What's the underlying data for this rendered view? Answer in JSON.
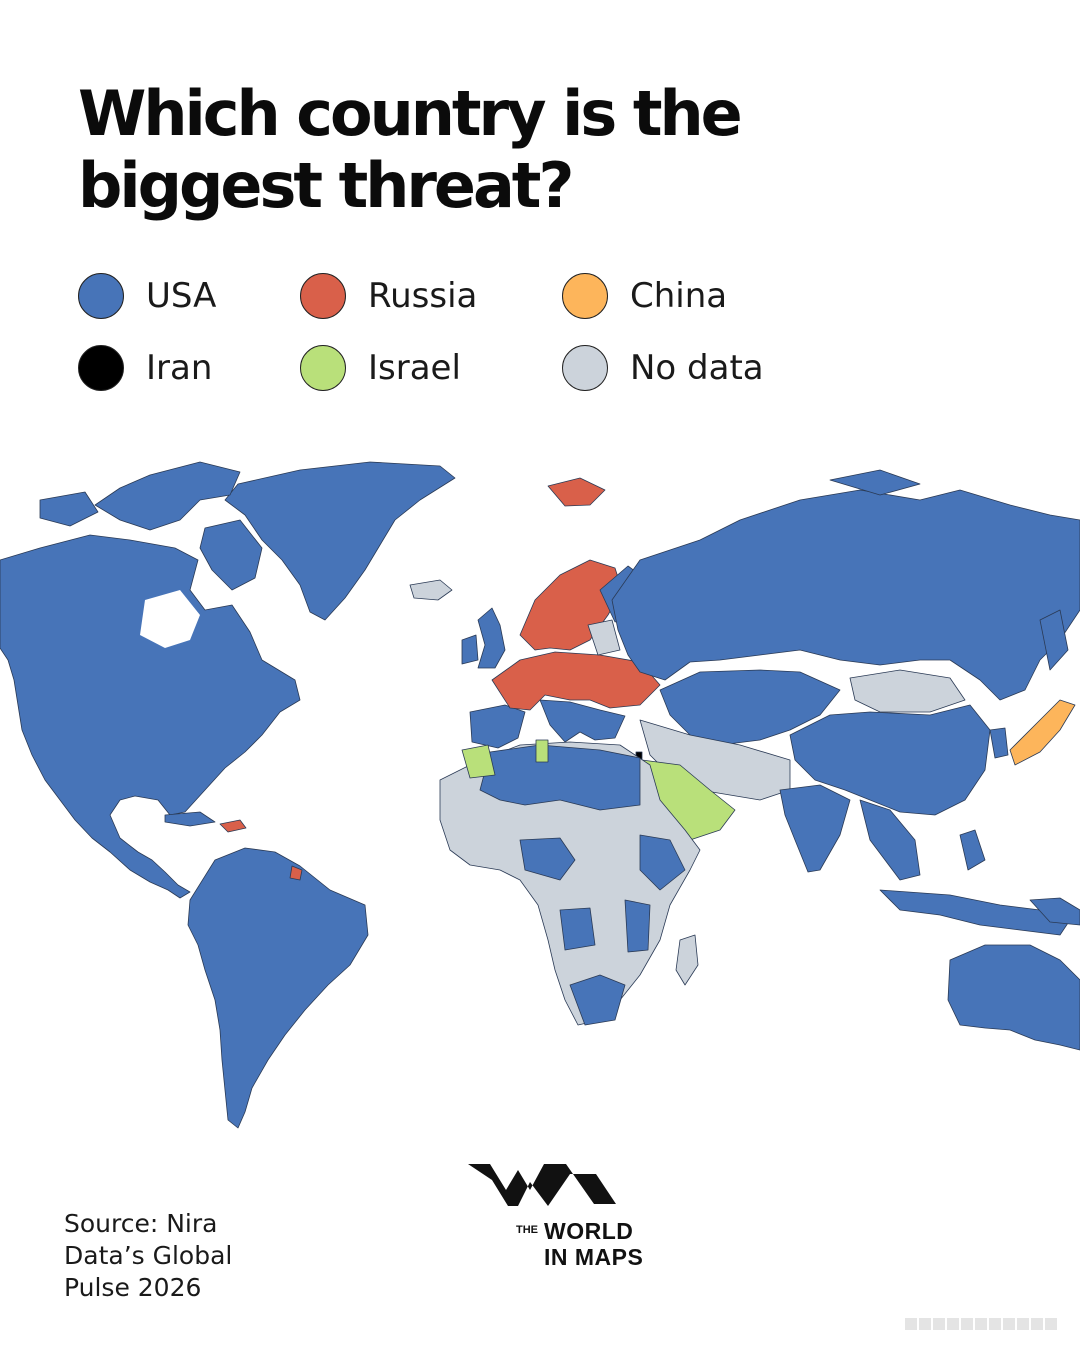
{
  "title": "Which country is the biggest threat?",
  "legend": {
    "items": [
      {
        "label": "USA",
        "color": "#4774b8"
      },
      {
        "label": "Russia",
        "color": "#d9604a"
      },
      {
        "label": "China",
        "color": "#fdb55b"
      },
      {
        "label": "Iran",
        "color": "#000000"
      },
      {
        "label": "Israel",
        "color": "#b9e07a"
      },
      {
        "label": "No data",
        "color": "#ccd3db"
      }
    ]
  },
  "source": "Source: Nira Data’s Global Pulse 2026",
  "logo": {
    "the": "THE",
    "world": "WORLD",
    "in_maps": "IN MAPS"
  },
  "map": {
    "background_color": "#ffffff",
    "border_color": "#2a3a55"
  }
}
